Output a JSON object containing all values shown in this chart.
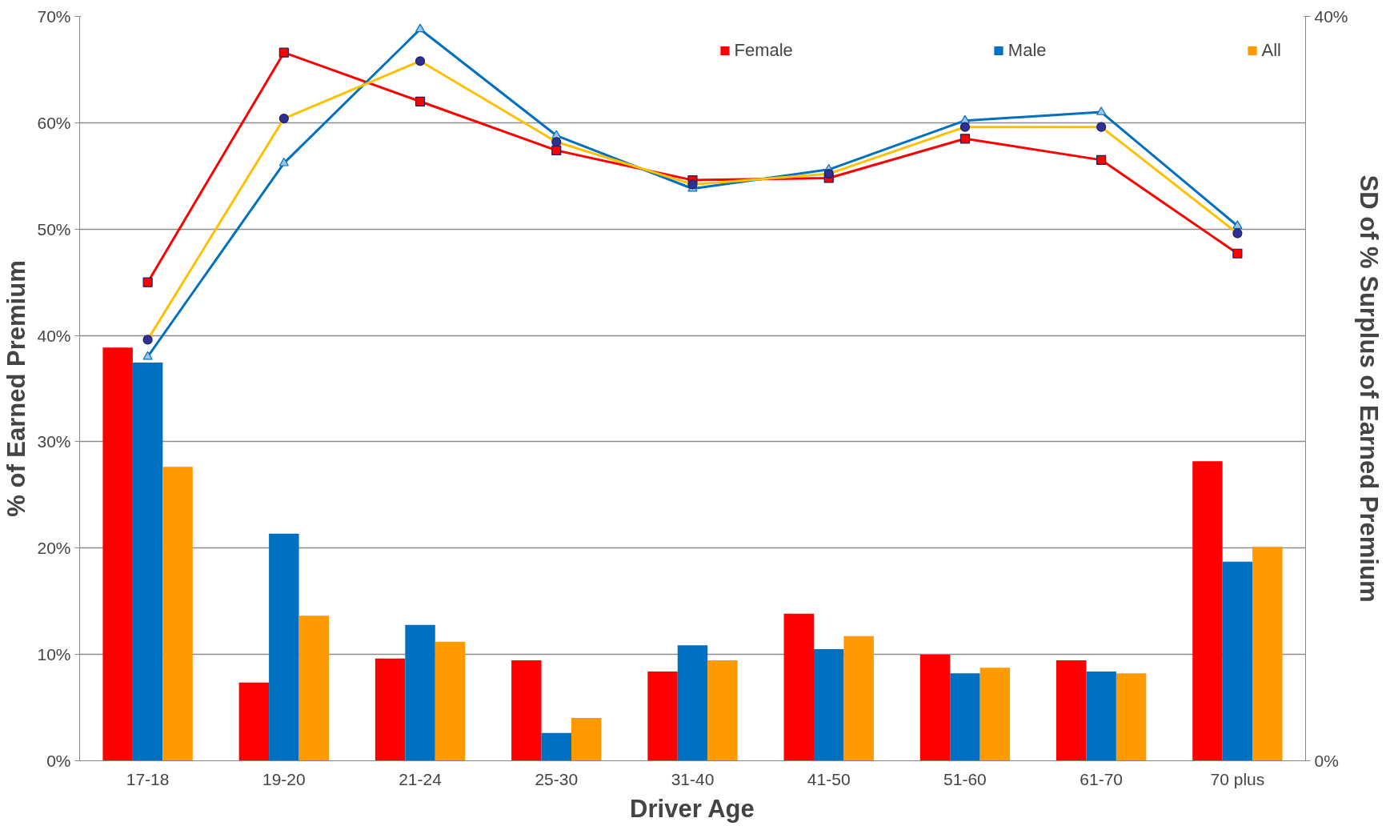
{
  "chart_data": {
    "type": "bar",
    "xlabel": "Driver Age",
    "ylabel": "% of Earned Premium",
    "y2label": "SD of % Surplus of Earned Premium",
    "categories": [
      "17-18",
      "19-20",
      "21-24",
      "25-30",
      "31-40",
      "41-50",
      "51-60",
      "61-70",
      "70 plus"
    ],
    "series": [
      {
        "name": "Female",
        "axis": "y2",
        "color": "#ff0000",
        "values": [
          22.2,
          4.2,
          5.5,
          5.4,
          4.8,
          7.9,
          5.7,
          5.4,
          16.1
        ]
      },
      {
        "name": "Male",
        "axis": "y2",
        "color": "#0070c0",
        "values": [
          21.4,
          12.2,
          7.3,
          1.5,
          6.2,
          6.0,
          4.7,
          4.8,
          10.7
        ]
      },
      {
        "name": "All",
        "axis": "y2",
        "color": "#ff9900",
        "values": [
          15.8,
          7.8,
          6.4,
          2.3,
          5.4,
          6.7,
          5.0,
          4.7,
          11.5
        ]
      },
      {
        "type": "line",
        "color": "#ff0000",
        "marker": "square",
        "values": [
          45.0,
          66.6,
          62.0,
          57.4,
          54.6,
          54.8,
          58.5,
          56.5,
          47.7
        ]
      },
      {
        "type": "line",
        "color": "#0070c0",
        "marker": "triangle",
        "values": [
          38.0,
          56.2,
          68.8,
          58.8,
          53.8,
          55.6,
          60.2,
          61.0,
          50.3
        ]
      },
      {
        "type": "line",
        "color": "#ffc000",
        "marker": "circle",
        "values": [
          39.6,
          60.4,
          65.8,
          58.2,
          54.2,
          55.2,
          59.6,
          59.6,
          49.6
        ]
      }
    ],
    "ylim": [
      0,
      70
    ],
    "yticks": [
      {
        "value": 0,
        "label": "0%"
      },
      {
        "value": 10,
        "label": "10%"
      },
      {
        "value": 20,
        "label": "20%"
      },
      {
        "value": 30,
        "label": "30%"
      },
      {
        "value": 40,
        "label": "40%"
      },
      {
        "value": 50,
        "label": "50%"
      },
      {
        "value": 60,
        "label": "60%"
      },
      {
        "value": 70,
        "label": "70%"
      }
    ],
    "y2lim": [
      0,
      40
    ],
    "y2ticks": [
      {
        "value": 0,
        "label": "0%"
      },
      {
        "value": 40,
        "label": "40%"
      }
    ],
    "grid": "y",
    "legend": "top",
    "line_style": "solid"
  }
}
